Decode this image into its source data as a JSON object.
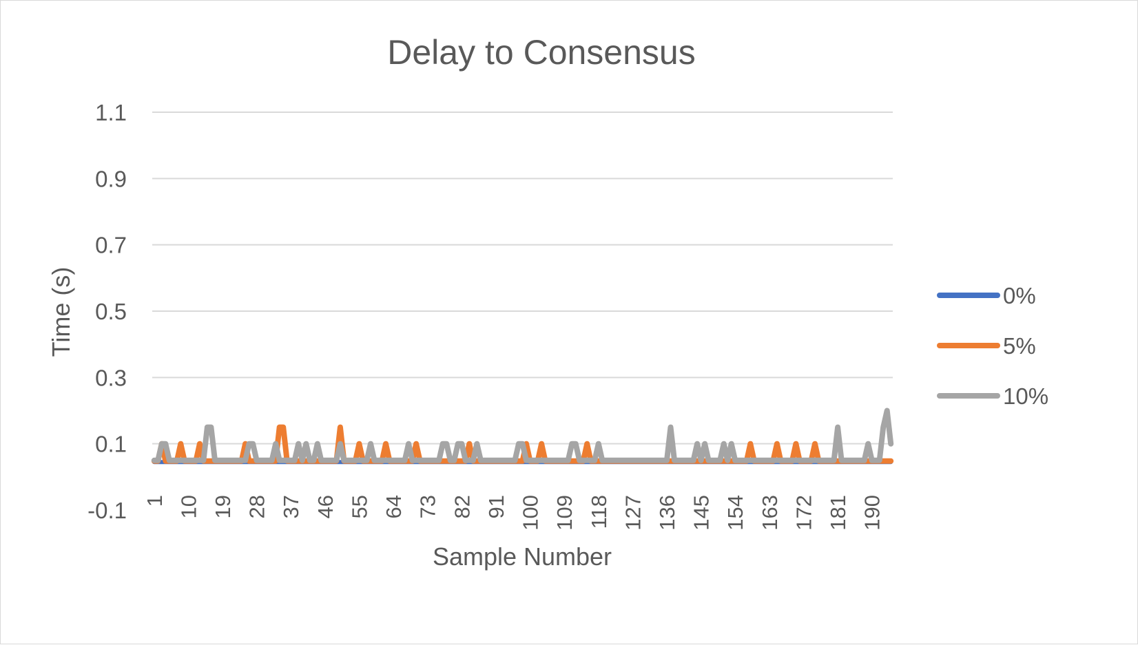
{
  "chart_data": {
    "type": "line",
    "title": "Delay to Consensus",
    "xlabel": "Sample Number",
    "ylabel": "Time (s)",
    "ylim": [
      -0.1,
      1.1
    ],
    "yticks": [
      "-0.1",
      "0.1",
      "0.3",
      "0.5",
      "0.7",
      "0.9",
      "1.1"
    ],
    "xticks": [
      "1",
      "10",
      "19",
      "28",
      "37",
      "46",
      "55",
      "64",
      "73",
      "82",
      "91",
      "100",
      "109",
      "118",
      "127",
      "136",
      "145",
      "154",
      "163",
      "172",
      "181",
      "190"
    ],
    "x_count": 195,
    "grid": true,
    "legend_position": "right",
    "series": [
      {
        "name": "0%",
        "color": "#4472C4",
        "baseline": 0.045,
        "spikes": []
      },
      {
        "name": "5%",
        "color": "#ED7D31",
        "baseline": 0.048,
        "spikes": [
          [
            3,
            0.1
          ],
          [
            8,
            0.1
          ],
          [
            13,
            0.1
          ],
          [
            25,
            0.1
          ],
          [
            34,
            0.15
          ],
          [
            35,
            0.15
          ],
          [
            50,
            0.15
          ],
          [
            55,
            0.1
          ],
          [
            62,
            0.1
          ],
          [
            70,
            0.1
          ],
          [
            84,
            0.1
          ],
          [
            99,
            0.1
          ],
          [
            103,
            0.1
          ],
          [
            115,
            0.1
          ],
          [
            158,
            0.1
          ],
          [
            165,
            0.1
          ],
          [
            170,
            0.1
          ],
          [
            175,
            0.1
          ]
        ]
      },
      {
        "name": "10%",
        "color": "#A5A5A5",
        "baseline": 0.05,
        "spikes": [
          [
            3,
            0.1
          ],
          [
            4,
            0.1
          ],
          [
            15,
            0.15
          ],
          [
            16,
            0.15
          ],
          [
            26,
            0.1
          ],
          [
            27,
            0.1
          ],
          [
            33,
            0.1
          ],
          [
            39,
            0.1
          ],
          [
            41,
            0.1
          ],
          [
            44,
            0.1
          ],
          [
            50,
            0.1
          ],
          [
            58,
            0.1
          ],
          [
            68,
            0.1
          ],
          [
            77,
            0.1
          ],
          [
            78,
            0.1
          ],
          [
            81,
            0.1
          ],
          [
            82,
            0.1
          ],
          [
            86,
            0.1
          ],
          [
            97,
            0.1
          ],
          [
            98,
            0.1
          ],
          [
            111,
            0.1
          ],
          [
            112,
            0.1
          ],
          [
            118,
            0.1
          ],
          [
            137,
            0.15
          ],
          [
            144,
            0.1
          ],
          [
            146,
            0.1
          ],
          [
            151,
            0.1
          ],
          [
            153,
            0.1
          ],
          [
            181,
            0.15
          ],
          [
            189,
            0.1
          ],
          [
            193,
            0.15
          ],
          [
            194,
            0.2
          ],
          [
            195,
            0.1
          ]
        ]
      }
    ]
  }
}
